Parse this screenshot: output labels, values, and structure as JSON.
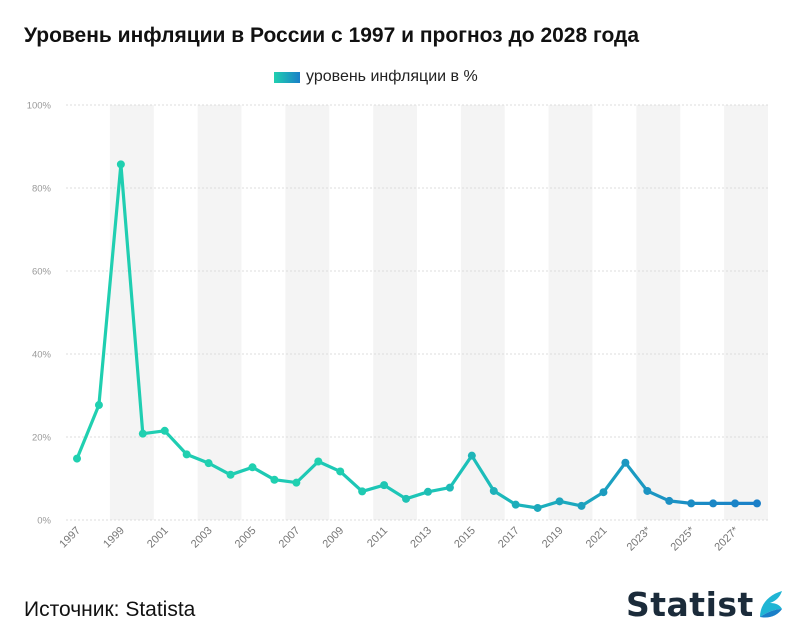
{
  "header": {
    "title": "Уровень инфляции в России с 1997 и прогноз до 2028 года"
  },
  "legend": {
    "label": "уровень инфляции в %"
  },
  "footer": {
    "source": "Источник: Statista",
    "brand": "Statist"
  },
  "colors": {
    "start": "#20d0b0",
    "end": "#1a7fc8",
    "grid": "#dddddd",
    "band": "#f4f4f4"
  },
  "chart_data": {
    "type": "line",
    "ylim": [
      0,
      100
    ],
    "yticks": [
      "0%",
      "20%",
      "40%",
      "60%",
      "80%",
      "100%"
    ],
    "ytick_values": [
      0,
      20,
      40,
      60,
      80,
      100
    ],
    "xtick_labels": [
      "1997",
      "1999",
      "2001",
      "2003",
      "2005",
      "2007",
      "2009",
      "2011",
      "2013",
      "2015",
      "2017",
      "2019",
      "2021",
      "2023*",
      "2025*",
      "2027*"
    ],
    "x": [
      1997,
      1998,
      1999,
      2000,
      2001,
      2002,
      2003,
      2004,
      2005,
      2006,
      2007,
      2008,
      2009,
      2010,
      2011,
      2012,
      2013,
      2014,
      2015,
      2016,
      2017,
      2018,
      2019,
      2020,
      2021,
      2022,
      2023,
      2024,
      2025,
      2026,
      2027,
      2028
    ],
    "values": [
      14.8,
      27.7,
      85.7,
      20.8,
      21.5,
      15.8,
      13.7,
      10.9,
      12.7,
      9.7,
      9.0,
      14.1,
      11.7,
      6.9,
      8.4,
      5.1,
      6.8,
      7.8,
      15.5,
      7.0,
      3.7,
      2.9,
      4.5,
      3.4,
      6.7,
      13.8,
      7.0,
      4.6,
      4.0,
      4.0,
      4.0,
      4.0
    ],
    "grid": true,
    "legend_position": "top-center"
  }
}
